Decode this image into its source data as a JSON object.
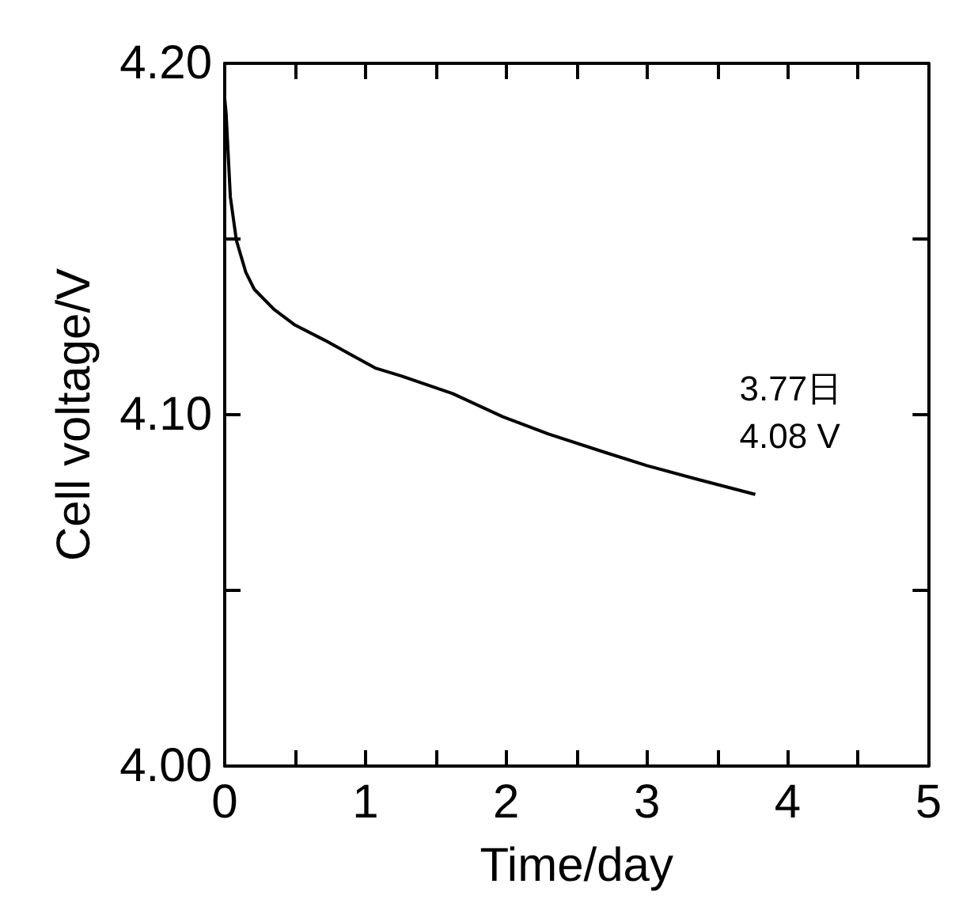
{
  "chart_data": {
    "type": "line",
    "xlabel": "Time/day",
    "ylabel": "Cell voltage/V",
    "xlim": [
      0,
      5
    ],
    "ylim": [
      4.0,
      4.2
    ],
    "xticks": [
      0,
      {
        "value": 0.5,
        "label": null
      },
      1,
      {
        "value": 1.5,
        "label": null
      },
      2,
      {
        "value": 2.5,
        "label": null
      },
      3,
      {
        "value": 3.5,
        "label": null
      },
      4,
      {
        "value": 4.5,
        "label": null
      },
      5
    ],
    "yticks": [
      {
        "value": 4.0,
        "label": "4.00"
      },
      {
        "value": 4.05,
        "label": null
      },
      {
        "value": 4.1,
        "label": "4.10"
      },
      {
        "value": 4.15,
        "label": null
      },
      {
        "value": 4.2,
        "label": "4.20"
      }
    ],
    "series": [
      {
        "color": "#000000",
        "x": [
          0,
          0.01,
          0.04,
          0.083,
          0.15,
          0.21,
          0.35,
          0.5,
          0.71,
          0.9,
          1.075,
          1.255,
          1.62,
          1.976,
          2.3,
          2.7,
          3.0,
          3.35,
          3.77
        ],
        "values": [
          4.19,
          4.1857,
          4.162,
          4.1496,
          4.1405,
          4.1357,
          4.13,
          4.1255,
          4.1212,
          4.117,
          4.1132,
          4.111,
          4.106,
          4.0994,
          4.0945,
          4.0893,
          4.0855,
          4.0817,
          4.0773
        ]
      }
    ],
    "annotations": [
      {
        "text": "3.77日\n4.08 V",
        "x": 3.77,
        "y": 4.08
      }
    ],
    "grid": false,
    "marker": "none",
    "line_style": "solid"
  }
}
